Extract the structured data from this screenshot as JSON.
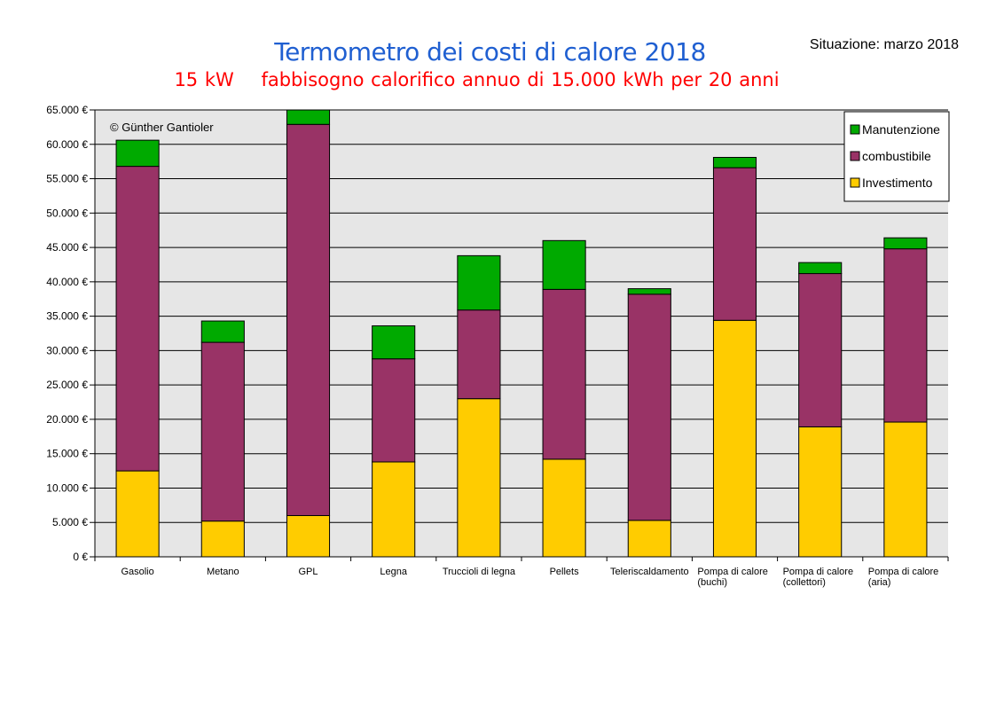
{
  "header": {
    "title": "Termometro dei costi di calore 2018",
    "subtitle": "15 kW    fabbisogno calorifico annuo di 15.000 kWh per 20 anni",
    "situazione": "Situazione: marzo 2018"
  },
  "chart_data": {
    "type": "bar",
    "stacked": true,
    "copyright": "© Günther Gantioler",
    "categories": [
      [
        "Gasolio"
      ],
      [
        "Metano"
      ],
      [
        "GPL"
      ],
      [
        "Legna"
      ],
      [
        "Truccioli di legna"
      ],
      [
        "Pellets"
      ],
      [
        "Teleriscaldamento"
      ],
      [
        "Pompa di calore",
        "(buchi)"
      ],
      [
        "Pompa di calore",
        "(collettori)"
      ],
      [
        "Pompa di calore",
        "(aria)"
      ]
    ],
    "series": [
      {
        "name": "Investimento",
        "color": "#ffcc00",
        "values": [
          12500,
          5200,
          6000,
          13800,
          23000,
          14200,
          5300,
          34400,
          18900,
          19600
        ]
      },
      {
        "name": "combustibile",
        "color": "#993366",
        "values": [
          44300,
          26000,
          56900,
          15000,
          12900,
          24700,
          32900,
          22200,
          22300,
          25200
        ]
      },
      {
        "name": "Manutenzione",
        "color": "#00aa00",
        "values": [
          3800,
          3100,
          2100,
          4800,
          7900,
          7100,
          800,
          1500,
          1600,
          1600
        ]
      }
    ],
    "legend_order": [
      "Manutenzione",
      "combustibile",
      "Investimento"
    ],
    "legend_position": "top-right",
    "ylim": [
      0,
      65000
    ],
    "y_ticks": [
      0,
      5000,
      10000,
      15000,
      20000,
      25000,
      30000,
      35000,
      40000,
      45000,
      50000,
      55000,
      60000,
      65000
    ],
    "y_tick_labels": [
      "0 €",
      "5.000 €",
      "10.000 €",
      "15.000 €",
      "20.000 €",
      "25.000 €",
      "30.000 €",
      "35.000 €",
      "40.000 €",
      "45.000 €",
      "50.000 €",
      "55.000 €",
      "60.000 €",
      "65.000 €"
    ],
    "grid": true,
    "plot_background": "#e6e6e6"
  }
}
